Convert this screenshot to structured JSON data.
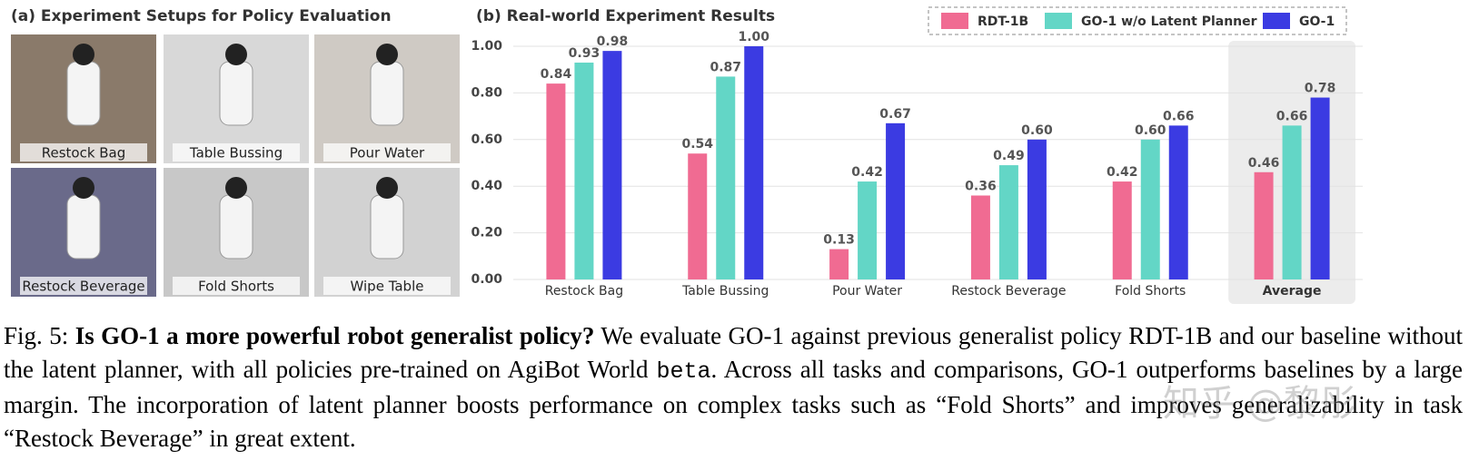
{
  "panel_a": {
    "title": "(a) Experiment Setups for Policy Evaluation",
    "images": [
      "Restock Bag",
      "Table Bussing",
      "Pour Water",
      "Restock Beverage",
      "Fold Shorts",
      "Wipe Table"
    ]
  },
  "chart_data": {
    "type": "bar",
    "title": "(b) Real-world Experiment Results",
    "categories": [
      "Restock Bag",
      "Table Bussing",
      "Pour Water",
      "Restock Beverage",
      "Fold Shorts",
      "Average"
    ],
    "highlight": "Average",
    "series": [
      {
        "name": "RDT-1B",
        "color": "#f06b92",
        "values": [
          0.84,
          0.54,
          0.13,
          0.36,
          0.42,
          0.46
        ],
        "value_labels": [
          "0.84",
          "0.54",
          "0.13",
          "0.36",
          "0.42",
          "0.46"
        ]
      },
      {
        "name": "GO-1 w/o Latent Planner",
        "color": "#63d6c6",
        "values": [
          0.93,
          0.87,
          0.42,
          0.49,
          0.6,
          0.66
        ],
        "value_labels": [
          "0.93",
          "0.87",
          "0.42",
          "0.49",
          "0.60",
          "0.66"
        ]
      },
      {
        "name": "GO-1",
        "color": "#3b3be2",
        "values": [
          0.98,
          1.0,
          0.67,
          0.6,
          0.66,
          0.78
        ],
        "value_labels": [
          "0.98",
          "1.00",
          "0.67",
          "0.60",
          "0.66",
          "0.78"
        ]
      }
    ],
    "ylim": [
      0,
      1.0
    ],
    "yticks": [
      {
        "value": 0,
        "label": "0.00"
      },
      {
        "value": 0.2,
        "label": "0.20"
      },
      {
        "value": 0.4,
        "label": "0.40"
      },
      {
        "value": 0.6,
        "label": "0.60"
      },
      {
        "value": 0.8,
        "label": "0.80"
      },
      {
        "value": 1.0,
        "label": "1.00"
      }
    ],
    "grid": true
  },
  "caption": {
    "label": "Fig. 5:",
    "bold": "Is GO-1 a more powerful robot generalist policy?",
    "text_before": "We evaluate GO-1 against previous generalist policy RDT-1B and our baseline without the latent planner, with all policies pre-trained on AgiBot World",
    "mono": "beta",
    "text_after": ". Across all tasks and comparisons, GO-1 outperforms baselines by a large margin. The incorporation of latent planner boosts performance on complex tasks such as “Fold Shorts” and improves generalizability in task “Restock Beverage” in great extent."
  },
  "watermark": "知乎 @黎彤"
}
